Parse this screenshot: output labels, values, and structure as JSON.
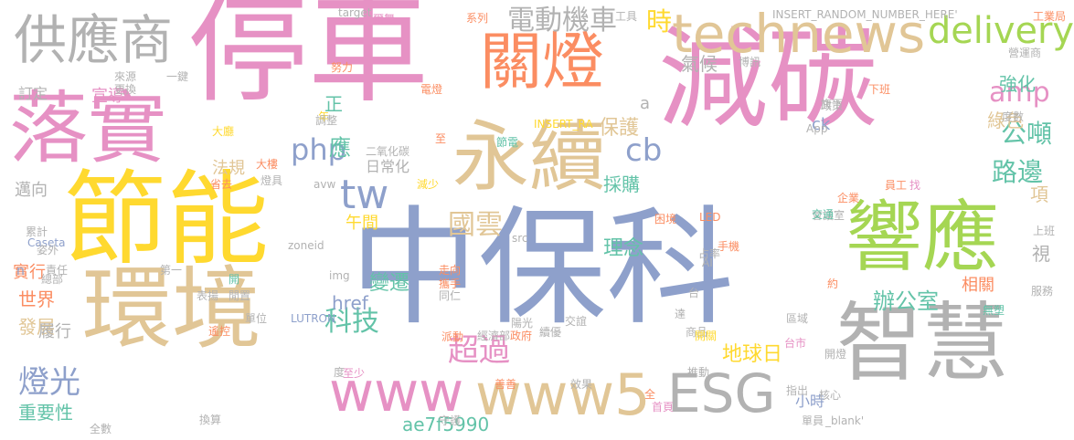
{
  "palette": {
    "pink": "#e691c4",
    "blue": "#8ea0cb",
    "gold": "#e1c696",
    "gray": "#b2b2b2",
    "green": "#a5d653",
    "yellow": "#ffd92f",
    "teal": "#63c3a8",
    "orange": "#fb8d62"
  },
  "words": [
    {
      "text": "停車",
      "color": "pink"
    },
    {
      "text": "減碳",
      "color": "pink"
    },
    {
      "text": "中保科",
      "color": "blue"
    },
    {
      "text": "節能",
      "color": "yellow"
    },
    {
      "text": "環境",
      "color": "gold"
    },
    {
      "text": "落實",
      "color": "pink"
    },
    {
      "text": "響應",
      "color": "green"
    },
    {
      "text": "智慧",
      "color": "gray"
    },
    {
      "text": "永續",
      "color": "gold"
    },
    {
      "text": "關燈",
      "color": "orange"
    },
    {
      "text": "供應商",
      "color": "gray"
    },
    {
      "text": "technews",
      "color": "gold"
    },
    {
      "text": "delivery",
      "color": "green"
    },
    {
      "text": "www5",
      "color": "gold"
    },
    {
      "text": "www",
      "color": "pink"
    },
    {
      "text": "ESG",
      "color": "gray"
    },
    {
      "text": "tw",
      "color": "blue"
    },
    {
      "text": "電動機車",
      "color": "gray"
    },
    {
      "text": "時",
      "color": "yellow"
    },
    {
      "text": "php",
      "color": "blue"
    },
    {
      "text": "amp",
      "color": "pink"
    },
    {
      "text": "科技",
      "color": "teal"
    },
    {
      "text": "超過",
      "color": "pink"
    },
    {
      "text": "國雲",
      "color": "gold"
    },
    {
      "text": "cb",
      "color": "blue"
    },
    {
      "text": "公噸",
      "color": "teal"
    },
    {
      "text": "路邊",
      "color": "teal"
    },
    {
      "text": "辦公室",
      "color": "teal"
    },
    {
      "text": "燈光",
      "color": "blue"
    },
    {
      "text": "地球日",
      "color": "yellow"
    },
    {
      "text": "ae7f5990",
      "color": "teal"
    },
    {
      "text": "重要性",
      "color": "teal"
    },
    {
      "text": "變遷",
      "color": "teal"
    },
    {
      "text": "理念",
      "color": "teal"
    },
    {
      "text": "保護",
      "color": "gold"
    },
    {
      "text": "採購",
      "color": "teal"
    },
    {
      "text": "綠色",
      "color": "gold"
    },
    {
      "text": "強化",
      "color": "teal"
    },
    {
      "text": "氣候",
      "color": "gray"
    },
    {
      "text": "宣導",
      "color": "pink"
    },
    {
      "text": "日常化",
      "color": "gray"
    },
    {
      "text": "法規",
      "color": "gold"
    },
    {
      "text": "午間",
      "color": "yellow"
    },
    {
      "text": "世界",
      "color": "orange"
    },
    {
      "text": "發展",
      "color": "gold"
    },
    {
      "text": "履行",
      "color": "gray"
    },
    {
      "text": "實行",
      "color": "orange"
    },
    {
      "text": "邁向",
      "color": "gray"
    },
    {
      "text": "訂定",
      "color": "gray"
    },
    {
      "text": "小時",
      "color": "blue"
    },
    {
      "text": "href",
      "color": "blue"
    },
    {
      "text": "相關",
      "color": "orange"
    },
    {
      "text": "正",
      "color": "teal"
    },
    {
      "text": "應",
      "color": "teal"
    },
    {
      "text": "項",
      "color": "gold"
    },
    {
      "text": "視",
      "color": "gray"
    },
    {
      "text": "ck",
      "color": "blue"
    },
    {
      "text": "n",
      "color": "blue"
    },
    {
      "text": "a",
      "color": "gray"
    },
    {
      "text": "target",
      "color": "gray"
    },
    {
      "text": "爾舞",
      "color": "pink"
    },
    {
      "text": "系列",
      "color": "orange"
    },
    {
      "text": "工具",
      "color": "gray"
    },
    {
      "text": "INSERT_RANDOM_NUMBER_HERE'",
      "color": "gray"
    },
    {
      "text": "工業局",
      "color": "orange"
    },
    {
      "text": "努力",
      "color": "orange"
    },
    {
      "text": "來源",
      "color": "gray"
    },
    {
      "text": "一鍵",
      "color": "gray"
    },
    {
      "text": "電燈",
      "color": "orange"
    },
    {
      "text": "博訊",
      "color": "gray"
    },
    {
      "text": "營運商",
      "color": "gray"
    },
    {
      "text": "更換",
      "color": "gray"
    },
    {
      "text": "INSERT_RA",
      "color": "yellow"
    },
    {
      "text": "大廳",
      "color": "yellow"
    },
    {
      "text": "年",
      "color": "yellow"
    },
    {
      "text": "調整",
      "color": "gray"
    },
    {
      "text": "二氧化碳",
      "color": "gray"
    },
    {
      "text": "節電",
      "color": "teal"
    },
    {
      "text": "至",
      "color": "orange"
    },
    {
      "text": "下班",
      "color": "orange"
    },
    {
      "text": "旗下",
      "color": "gray"
    },
    {
      "text": "政策",
      "color": "gray"
    },
    {
      "text": "App",
      "color": "gray"
    },
    {
      "text": "度數",
      "color": "gray"
    },
    {
      "text": "大樓",
      "color": "orange"
    },
    {
      "text": "燈具",
      "color": "gray"
    },
    {
      "text": "省去",
      "color": "orange"
    },
    {
      "text": "減少",
      "color": "yellow"
    },
    {
      "text": "avw",
      "color": "gray"
    },
    {
      "text": "員工",
      "color": "orange"
    },
    {
      "text": "找",
      "color": "pink"
    },
    {
      "text": "企業",
      "color": "orange"
    },
    {
      "text": "會議室",
      "color": "gray"
    },
    {
      "text": "交通",
      "color": "teal"
    },
    {
      "text": "困境",
      "color": "orange"
    },
    {
      "text": "累計",
      "color": "gray"
    },
    {
      "text": "Caseta",
      "color": "blue"
    },
    {
      "text": "姿外",
      "color": "gray"
    },
    {
      "text": "zoneid",
      "color": "gray"
    },
    {
      "text": "src",
      "color": "gray"
    },
    {
      "text": "LED",
      "color": "orange"
    },
    {
      "text": "上班",
      "color": "gray"
    },
    {
      "text": "第一",
      "color": "gray"
    },
    {
      "text": "責任",
      "color": "gray"
    },
    {
      "text": "總部",
      "color": "gray"
    },
    {
      "text": "開",
      "color": "teal"
    },
    {
      "text": "img",
      "color": "gray"
    },
    {
      "text": "AI",
      "color": "gray"
    },
    {
      "text": "占率",
      "color": "gray"
    },
    {
      "text": "手機",
      "color": "orange"
    },
    {
      "text": "走向",
      "color": "orange"
    },
    {
      "text": "約",
      "color": "orange"
    },
    {
      "text": "服務",
      "color": "gray"
    },
    {
      "text": "表揚",
      "color": "gray"
    },
    {
      "text": "閒置",
      "color": "gray"
    },
    {
      "text": "攜手",
      "color": "orange"
    },
    {
      "text": "同仁",
      "color": "gray"
    },
    {
      "text": "台",
      "color": "gray"
    },
    {
      "text": "區域",
      "color": "gray"
    },
    {
      "text": "無塑",
      "color": "teal"
    },
    {
      "text": "單位",
      "color": "gray"
    },
    {
      "text": "LUTRON",
      "color": "blue"
    },
    {
      "text": "遙控",
      "color": "orange"
    },
    {
      "text": "交誼",
      "color": "gray"
    },
    {
      "text": "達",
      "color": "gray"
    },
    {
      "text": "陽光",
      "color": "gray"
    },
    {
      "text": "商品",
      "color": "gray"
    },
    {
      "text": "派動",
      "color": "orange"
    },
    {
      "text": "經濟部",
      "color": "gray"
    },
    {
      "text": "政府",
      "color": "orange"
    },
    {
      "text": "續優",
      "color": "gray"
    },
    {
      "text": "開關",
      "color": "yellow"
    },
    {
      "text": "台市",
      "color": "pink"
    },
    {
      "text": "開燈",
      "color": "gray"
    },
    {
      "text": "度",
      "color": "gray"
    },
    {
      "text": "至少",
      "color": "pink"
    },
    {
      "text": "推動",
      "color": "gray"
    },
    {
      "text": "指出",
      "color": "gray"
    },
    {
      "text": "核心",
      "color": "gray"
    },
    {
      "text": "善善",
      "color": "orange"
    },
    {
      "text": "效果",
      "color": "gray"
    },
    {
      "text": "全",
      "color": "orange"
    },
    {
      "text": "首頁",
      "color": "pink"
    },
    {
      "text": "換算",
      "color": "gray"
    },
    {
      "text": "守護",
      "color": "gray"
    },
    {
      "text": "全數",
      "color": "gray"
    },
    {
      "text": "_blank'",
      "color": "gray"
    },
    {
      "text": "單員",
      "color": "gray"
    }
  ]
}
